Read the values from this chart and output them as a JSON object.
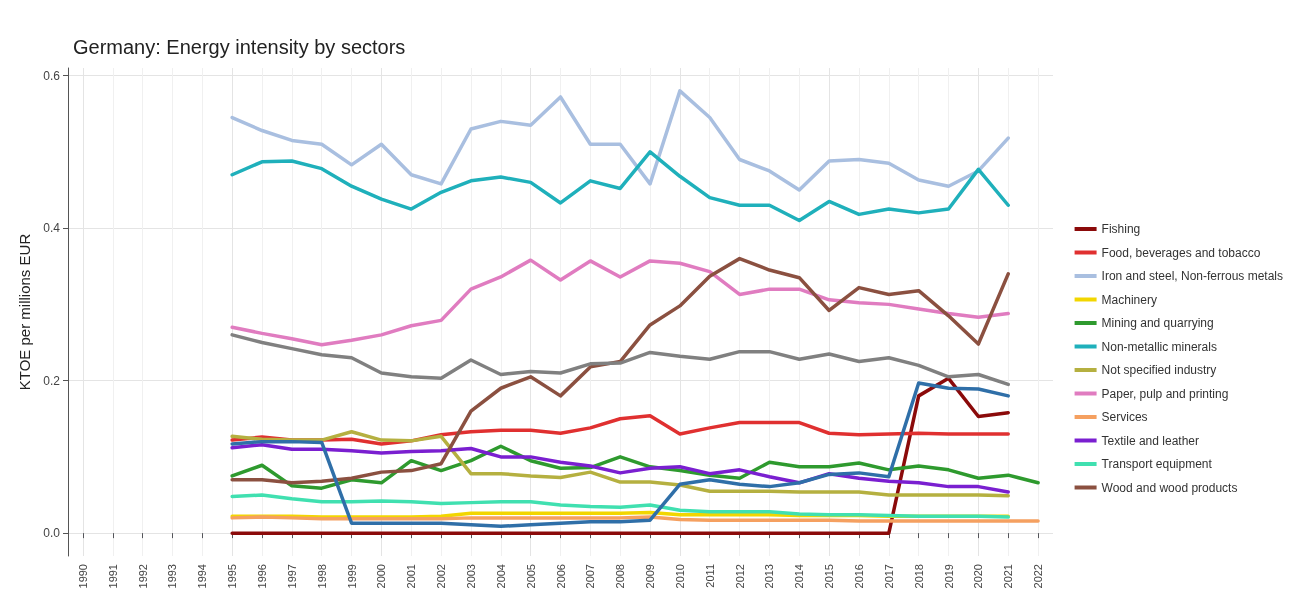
{
  "chart_data": {
    "type": "line",
    "title": "Germany: Energy intensity by sectors",
    "ylabel": "KTOE per millions EUR",
    "x": [
      1995,
      1996,
      1997,
      1998,
      1999,
      2000,
      2001,
      2002,
      2003,
      2004,
      2005,
      2006,
      2007,
      2008,
      2009,
      2010,
      2011,
      2012,
      2013,
      2014,
      2015,
      2016,
      2017,
      2018,
      2019,
      2020,
      2021,
      2022
    ],
    "xlim": [
      1989.5,
      2022.5
    ],
    "xticks": [
      1990,
      1991,
      1992,
      1993,
      1994,
      1995,
      1996,
      1997,
      1998,
      1999,
      2000,
      2001,
      2002,
      2003,
      2004,
      2005,
      2006,
      2007,
      2008,
      2009,
      2010,
      2011,
      2012,
      2013,
      2014,
      2015,
      2016,
      2017,
      2018,
      2019,
      2020,
      2021,
      2022
    ],
    "ylim": [
      -0.03,
      0.61
    ],
    "yticks": [
      {
        "value": 0,
        "label": "0.0"
      },
      {
        "value": 0.2,
        "label": "0.2"
      },
      {
        "value": 0.4,
        "label": "0.4"
      },
      {
        "value": 0.6,
        "label": "0.6"
      }
    ],
    "grid": true,
    "legend": "right",
    "line_style": "solid",
    "marker": "none",
    "series": [
      {
        "name": "Fishing",
        "color": "#8b0a0a",
        "values": [
          0,
          0,
          0,
          0,
          0,
          0,
          0,
          0,
          0,
          0,
          0,
          0,
          0,
          0,
          0,
          0,
          0,
          0,
          0,
          0,
          0,
          0,
          0,
          0.18,
          0.203,
          0.153,
          0.158,
          null
        ]
      },
      {
        "name": "Food, beverages and tobacco",
        "color": "#e03030",
        "values": [
          0.122,
          0.126,
          0.122,
          0.122,
          0.123,
          0.117,
          0.121,
          0.129,
          0.133,
          0.135,
          0.135,
          0.131,
          0.138,
          0.15,
          0.154,
          0.13,
          0.138,
          0.145,
          0.145,
          0.145,
          0.131,
          0.129,
          0.13,
          0.131,
          0.13,
          0.13,
          0.13,
          null
        ]
      },
      {
        "name": "Iron and steel, Non-ferrous metals",
        "color": "#a9bfe0",
        "values": [
          0.545,
          0.528,
          0.515,
          0.51,
          0.483,
          0.51,
          0.47,
          0.458,
          0.53,
          0.54,
          0.535,
          0.572,
          0.51,
          0.51,
          0.458,
          0.58,
          0.545,
          0.49,
          0.475,
          0.45,
          0.488,
          0.49,
          0.485,
          0.463,
          0.455,
          0.475,
          0.518,
          null
        ]
      },
      {
        "name": "Machinery",
        "color": "#f2d600",
        "values": [
          0.022,
          0.022,
          0.022,
          0.021,
          0.021,
          0.021,
          0.021,
          0.022,
          0.026,
          0.026,
          0.026,
          0.026,
          0.026,
          0.026,
          0.027,
          0.024,
          0.024,
          0.024,
          0.024,
          0.023,
          0.023,
          0.023,
          0.022,
          0.022,
          0.022,
          0.022,
          0.022,
          null
        ]
      },
      {
        "name": "Mining and quarrying",
        "color": "#2e9a2e",
        "values": [
          0.075,
          0.089,
          0.062,
          0.059,
          0.07,
          0.066,
          0.095,
          0.082,
          0.095,
          0.114,
          0.095,
          0.085,
          0.086,
          0.1,
          0.087,
          0.082,
          0.076,
          0.072,
          0.093,
          0.087,
          0.087,
          0.092,
          0.083,
          0.088,
          0.083,
          0.072,
          0.076,
          0.066
        ]
      },
      {
        "name": "Non-metallic minerals",
        "color": "#1fb0bb",
        "values": [
          0.47,
          0.487,
          0.488,
          0.478,
          0.455,
          0.438,
          0.425,
          0.447,
          0.462,
          0.467,
          0.46,
          0.433,
          0.462,
          0.452,
          0.5,
          0.468,
          0.44,
          0.43,
          0.43,
          0.41,
          0.435,
          0.418,
          0.425,
          0.42,
          0.425,
          0.477,
          0.43,
          null
        ]
      },
      {
        "name": "Not specified industry",
        "color": "#b5b040",
        "values": [
          0.127,
          0.123,
          0.122,
          0.122,
          0.133,
          0.122,
          0.121,
          0.127,
          0.078,
          0.078,
          0.075,
          0.073,
          0.08,
          0.067,
          0.067,
          0.063,
          0.055,
          0.055,
          0.055,
          0.054,
          0.054,
          0.054,
          0.05,
          0.05,
          0.05,
          0.05,
          0.049,
          null
        ]
      },
      {
        "name": "Paper, pulp and printing",
        "color": "#e07cc0",
        "values": [
          0.27,
          0.262,
          0.255,
          0.247,
          0.253,
          0.26,
          0.272,
          0.279,
          0.32,
          0.336,
          0.358,
          0.332,
          0.357,
          0.336,
          0.357,
          0.354,
          0.343,
          0.313,
          0.32,
          0.32,
          0.306,
          0.302,
          0.3,
          0.294,
          0.288,
          0.283,
          0.288,
          null
        ]
      },
      {
        "name": "Services",
        "color": "#f5a060",
        "values": [
          0.02,
          0.021,
          0.02,
          0.019,
          0.019,
          0.019,
          0.019,
          0.019,
          0.02,
          0.02,
          0.02,
          0.02,
          0.02,
          0.02,
          0.021,
          0.018,
          0.017,
          0.017,
          0.017,
          0.017,
          0.017,
          0.016,
          0.016,
          0.016,
          0.016,
          0.016,
          0.016,
          0.016
        ]
      },
      {
        "name": "Textile and leather",
        "color": "#7a1fd0",
        "values": [
          0.112,
          0.116,
          0.11,
          0.11,
          0.108,
          0.105,
          0.107,
          0.108,
          0.111,
          0.1,
          0.1,
          0.093,
          0.088,
          0.079,
          0.085,
          0.087,
          0.078,
          0.083,
          0.074,
          0.066,
          0.078,
          0.072,
          0.068,
          0.066,
          0.061,
          0.061,
          0.054,
          null
        ]
      },
      {
        "name": "Transport equipment",
        "color": "#40e0b0",
        "values": [
          0.048,
          0.05,
          0.045,
          0.041,
          0.041,
          0.042,
          0.041,
          0.039,
          0.04,
          0.041,
          0.041,
          0.037,
          0.035,
          0.034,
          0.037,
          0.03,
          0.028,
          0.028,
          0.028,
          0.025,
          0.024,
          0.024,
          0.023,
          0.022,
          0.022,
          0.022,
          0.021,
          null
        ]
      },
      {
        "name": "Wood and wood products",
        "color": "#8b5040",
        "values": [
          0.07,
          0.07,
          0.066,
          0.068,
          0.072,
          0.08,
          0.082,
          0.091,
          0.16,
          0.19,
          0.205,
          0.18,
          0.218,
          0.225,
          0.273,
          0.298,
          0.337,
          0.36,
          0.345,
          0.335,
          0.292,
          0.322,
          0.313,
          0.318,
          0.285,
          0.248,
          0.34,
          null
        ]
      },
      {
        "color": "#808080",
        "values": [
          0.26,
          0.25,
          0.242,
          0.234,
          0.23,
          0.21,
          0.205,
          0.203,
          0.227,
          0.208,
          0.212,
          0.21,
          0.222,
          0.223,
          0.237,
          0.232,
          0.228,
          0.238,
          0.238,
          0.228,
          0.235,
          0.225,
          0.23,
          0.22,
          0.205,
          0.208,
          0.195,
          null
        ]
      },
      {
        "color": "#2f6fa8",
        "values": [
          0.117,
          0.12,
          0.12,
          0.119,
          0.013,
          0.013,
          0.013,
          0.013,
          0.011,
          0.009,
          0.011,
          0.013,
          0.015,
          0.015,
          0.017,
          0.064,
          0.07,
          0.064,
          0.061,
          0.066,
          0.077,
          0.079,
          0.074,
          0.197,
          0.19,
          0.189,
          0.18,
          null
        ]
      }
    ]
  }
}
